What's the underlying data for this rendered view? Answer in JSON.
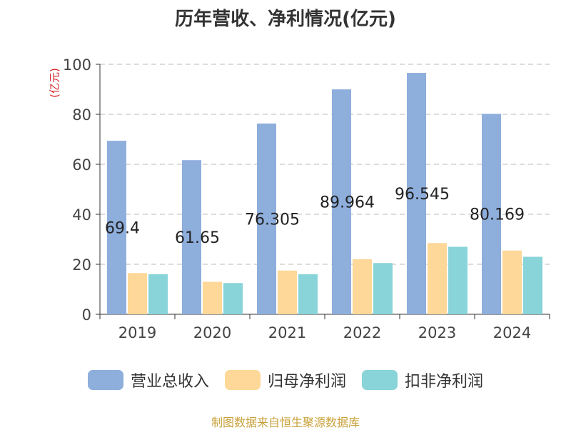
{
  "header": {
    "title": "历年营收、净利情况(亿元)"
  },
  "axis_unit": "(亿元)",
  "source_note": "制图数据来自恒生聚源数据库",
  "colors": {
    "revenue": "#8eaedc",
    "parent_net_profit": "#fdd898",
    "deducted_net_profit": "#88d4d8"
  },
  "chart_data": {
    "type": "bar",
    "title": "历年营收、净利情况(亿元)",
    "ylabel": "(亿元)",
    "xlabel": "",
    "categories": [
      "2019",
      "2020",
      "2021",
      "2022",
      "2023",
      "2024"
    ],
    "ylim": [
      0,
      100
    ],
    "yticks": [
      0,
      20,
      40,
      60,
      80,
      100
    ],
    "grid": true,
    "legend": "bottom",
    "series": [
      {
        "name": "营业总收入",
        "values": [
          69.4,
          61.65,
          76.305,
          89.964,
          96.545,
          80.169
        ],
        "labels": [
          "69.4",
          "61.65",
          "76.305",
          "89.964",
          "96.545",
          "80.169"
        ]
      },
      {
        "name": "归母净利润",
        "values": [
          16.5,
          13.0,
          17.5,
          22.0,
          28.5,
          25.5
        ]
      },
      {
        "name": "扣非净利润",
        "values": [
          16.0,
          12.5,
          16.0,
          20.5,
          27.0,
          23.0
        ]
      }
    ]
  }
}
